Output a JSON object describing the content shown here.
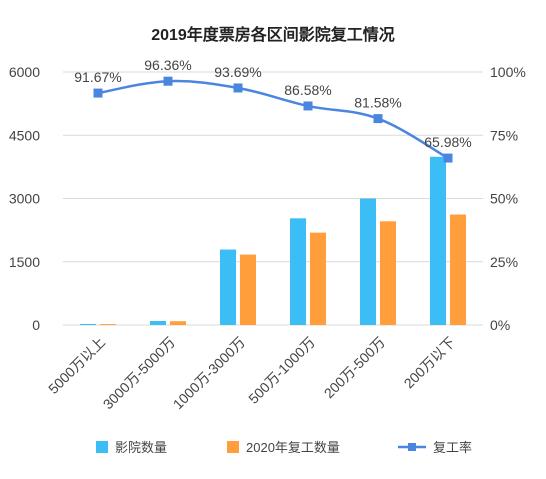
{
  "chart_data": {
    "type": "bar",
    "title": "2019年度票房各区间影院复工情况",
    "categories": [
      "5000万以上",
      "3000万-5000万",
      "1000万-3000万",
      "500万-1000万",
      "200万-500万",
      "200万以下"
    ],
    "series": [
      {
        "name": "影院数量",
        "type": "bar",
        "axis": "left",
        "color": "#3DBDF5",
        "values": [
          25,
          95,
          1790,
          2530,
          3000,
          3990
        ]
      },
      {
        "name": "2020年复工数量",
        "type": "bar",
        "axis": "left",
        "color": "#FF9E3A",
        "values": [
          22,
          90,
          1670,
          2190,
          2460,
          2620
        ]
      },
      {
        "name": "复工率",
        "type": "line",
        "axis": "right",
        "color": "#4A86E0",
        "values": [
          91.67,
          96.36,
          93.69,
          86.58,
          81.58,
          65.98
        ],
        "labels": [
          "91.67%",
          "96.36%",
          "93.69%",
          "86.58%",
          "81.58%",
          "65.98%"
        ]
      }
    ],
    "y_left": {
      "ylim": [
        0,
        6000
      ],
      "ticks": [
        "0",
        "1500",
        "3000",
        "4500",
        "6000"
      ]
    },
    "y_right": {
      "ylim": [
        0,
        100
      ],
      "ticks": [
        "0%",
        "25%",
        "50%",
        "75%",
        "100%"
      ]
    },
    "grid": true,
    "legend_position": "bottom"
  }
}
